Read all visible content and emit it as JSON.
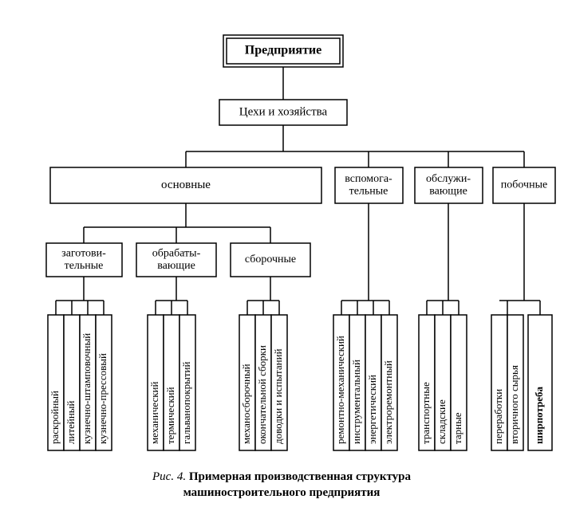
{
  "type": "tree",
  "background_color": "#ffffff",
  "stroke_color": "#000000",
  "stroke_width": 1.5,
  "font_family": "Times New Roman",
  "caption": {
    "prefix": "Рис. 4.",
    "line1": "Примерная производственная структура",
    "line2": "машиностроительного предприятия",
    "fontsize": 15
  },
  "root": {
    "label": "Предприятие",
    "fontsize": 16,
    "bold": true,
    "double_border": true
  },
  "level1": {
    "label": "Цехи и хозяйства",
    "fontsize": 15
  },
  "level2": [
    {
      "id": "main",
      "label": "основные",
      "fontsize": 15
    },
    {
      "id": "aux",
      "label": "вспомога-\nтельные",
      "fontsize": 14
    },
    {
      "id": "serv",
      "label": "обслужи-\nвающие",
      "fontsize": 14
    },
    {
      "id": "side",
      "label": "побочные",
      "fontsize": 14
    }
  ],
  "level3_main": [
    {
      "id": "prep",
      "label": "заготови-\nтельные",
      "fontsize": 14
    },
    {
      "id": "proc",
      "label": "обрабаты-\nвающие",
      "fontsize": 14
    },
    {
      "id": "asm",
      "label": "сборочные",
      "fontsize": 14
    }
  ],
  "leaves": {
    "prep": [
      "раскройный",
      "литейный",
      "кузнечно-штамповочный",
      "кузнечно-прессовый"
    ],
    "proc": [
      "механический",
      "термический",
      "гальванопокрытий"
    ],
    "asm": [
      "механосборочный",
      "окончательной сборки",
      "доводки и испытаний"
    ],
    "aux": [
      "ремонтно-механический",
      "инструментальный",
      "энергетический",
      "электроремонтный"
    ],
    "serv": [
      "транспортные",
      "складские",
      "тарные"
    ],
    "side_a": [
      "переработки",
      "вторичного сырья"
    ],
    "side_b": [
      "ширпотреба"
    ]
  },
  "leaf_fontsize": 13,
  "leaf_box_width": 20,
  "leaf_box_height": 170
}
